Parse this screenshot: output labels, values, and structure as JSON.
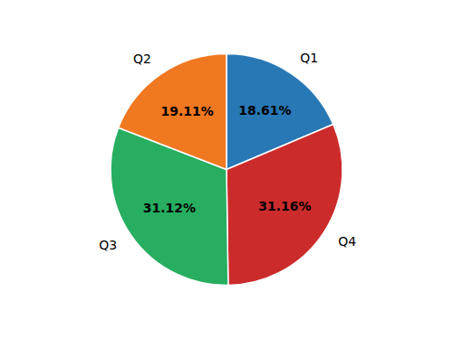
{
  "chart_data": {
    "type": "pie",
    "categories": [
      "Q1",
      "Q4",
      "Q3",
      "Q2"
    ],
    "values": [
      18.61,
      31.16,
      31.12,
      19.11
    ],
    "value_labels": [
      "18.61%",
      "31.16%",
      "31.12%",
      "19.11%"
    ],
    "colors": [
      "#2878b5",
      "#cc2b2b",
      "#27ae60",
      "#f07820"
    ],
    "data_labels": true
  }
}
